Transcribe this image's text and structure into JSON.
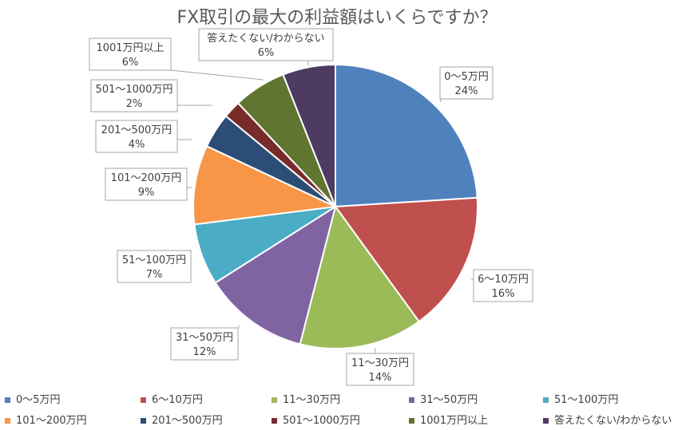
{
  "chart_data": {
    "type": "pie",
    "title": "FX取引の最大の利益額はいくらですか？",
    "categories": [
      "0～5万円",
      "6～10万円",
      "11～30万円",
      "31～50万円",
      "51～100万円",
      "101～200万円",
      "201～500万円",
      "501～1000万円",
      "1001万円以上",
      "答えたくない/わからない"
    ],
    "values": [
      24,
      16,
      14,
      12,
      7,
      9,
      4,
      2,
      6,
      6
    ],
    "value_labels": [
      "24%",
      "16%",
      "14%",
      "12%",
      "7%",
      "9%",
      "4%",
      "2%",
      "6%",
      "6%"
    ],
    "colors": [
      "#4f81bd",
      "#c0504d",
      "#9bbb59",
      "#8064a2",
      "#4bacc6",
      "#f79646",
      "#2c4d75",
      "#772c2a",
      "#5f7530",
      "#4d3b62"
    ],
    "legend_position": "bottom"
  }
}
